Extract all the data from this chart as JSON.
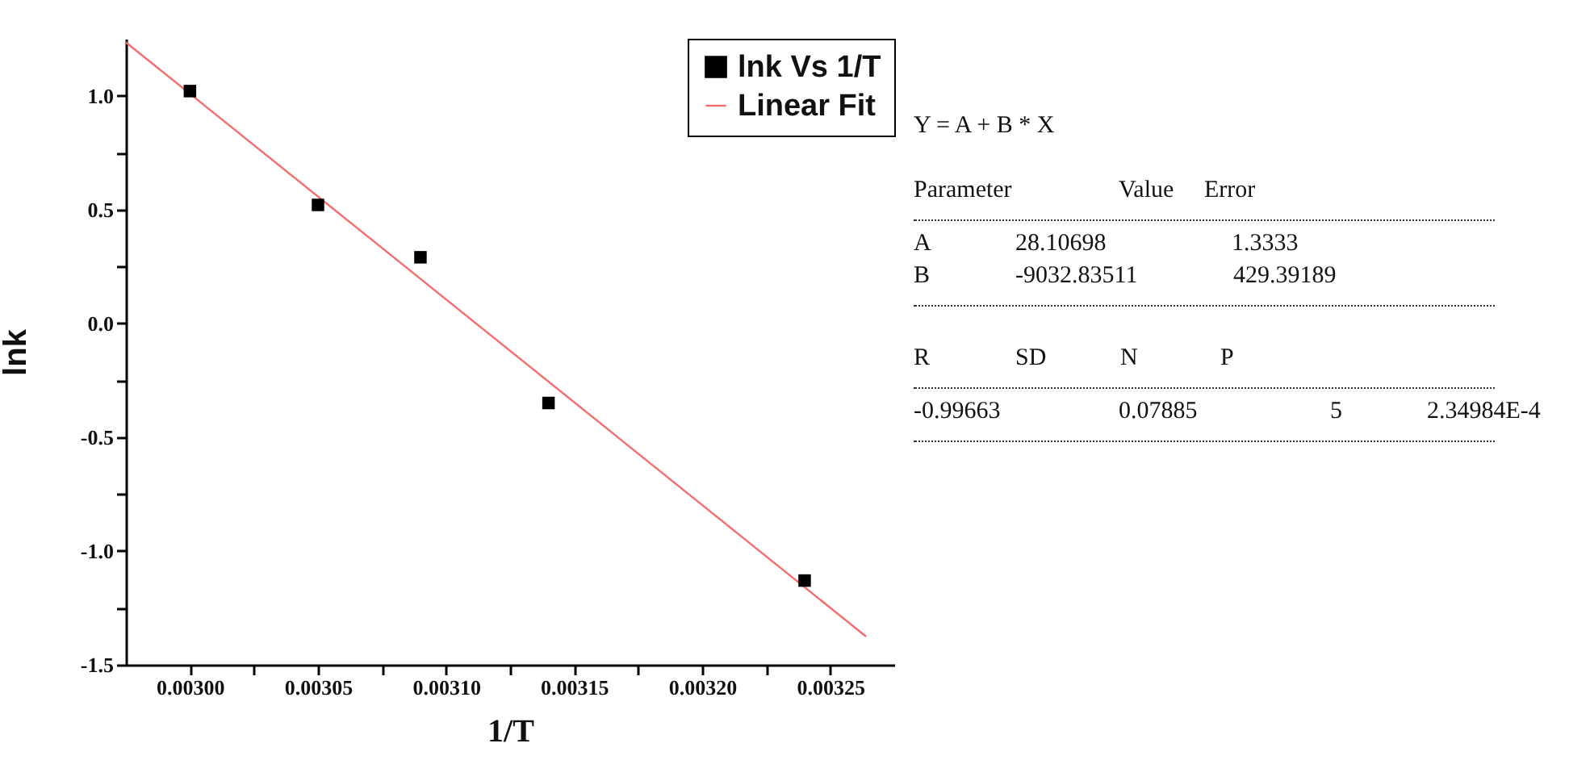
{
  "chart_data": {
    "type": "scatter",
    "xlabel": "1/T",
    "ylabel": "lnk",
    "legend": "top right",
    "grid": false,
    "xlim": [
      0.002975,
      0.003275
    ],
    "ylim": [
      -1.5,
      1.25
    ],
    "xticks": [
      {
        "value": 0.003,
        "label": "0.00300"
      },
      {
        "value": 0.003025,
        "label": null
      },
      {
        "value": 0.00305,
        "label": "0.00305"
      },
      {
        "value": 0.003075,
        "label": null
      },
      {
        "value": 0.0031,
        "label": "0.00310"
      },
      {
        "value": 0.003125,
        "label": null
      },
      {
        "value": 0.00315,
        "label": "0.00315"
      },
      {
        "value": 0.003175,
        "label": null
      },
      {
        "value": 0.0032,
        "label": "0.00320"
      },
      {
        "value": 0.003225,
        "label": null
      },
      {
        "value": 0.00325,
        "label": "0.00325"
      }
    ],
    "yticks": [
      {
        "value": -1.5,
        "label": "-1.5"
      },
      {
        "value": -1.25,
        "label": null
      },
      {
        "value": -1,
        "label": "-1.0"
      },
      {
        "value": -0.75,
        "label": null
      },
      {
        "value": -0.5,
        "label": "-0.5"
      },
      {
        "value": -0.25,
        "label": null
      },
      {
        "value": 0,
        "label": "0.0"
      },
      {
        "value": 0.25,
        "label": null
      },
      {
        "value": 0.5,
        "label": "0.5"
      },
      {
        "value": 0.75,
        "label": null
      },
      {
        "value": 1,
        "label": "1.0"
      }
    ],
    "series": [
      {
        "name": "lnk Vs 1/T",
        "color": "#000000",
        "marker": "square",
        "x": [
          0.003,
          0.00305,
          0.00309,
          0.00314,
          0.00324
        ],
        "values": [
          1.02,
          0.52,
          0.29,
          -0.35,
          -1.13
        ]
      },
      {
        "name": "Linear Fit",
        "type": "line",
        "color": "#f46d6d",
        "x": [
          0.002975,
          0.003264
        ],
        "values": [
          1.234,
          -1.376
        ]
      }
    ],
    "annotations": [
      "Y = A + B * X",
      "Parameter",
      "Value",
      "Error",
      "A",
      "28.10698",
      "1.3333",
      "B",
      "-9032.83511",
      "429.39189",
      "R",
      "SD",
      "N",
      "P",
      "-0.99663",
      "0.07885",
      "5",
      "2.34984E-4"
    ]
  }
}
